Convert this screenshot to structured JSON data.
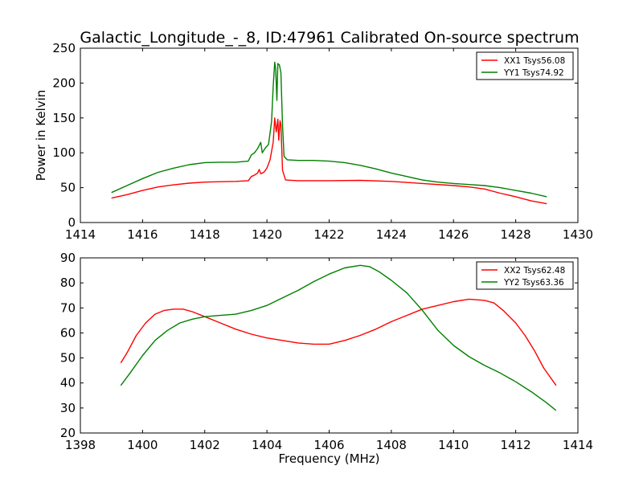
{
  "figure": {
    "title": "Galactic_Longitude_-_8, ID:47961 Calibrated On-source spectrum"
  },
  "chart_data": [
    {
      "type": "line",
      "ylabel": "Power in Kelvin",
      "xlabel": "",
      "xlim": [
        1414,
        1430
      ],
      "ylim": [
        0,
        250
      ],
      "xticks": [
        "1414",
        "1416",
        "1418",
        "1420",
        "1422",
        "1424",
        "1426",
        "1428",
        "1430"
      ],
      "yticks": [
        "0",
        "50",
        "100",
        "150",
        "200",
        "250"
      ],
      "legend_position": "top-right",
      "series": [
        {
          "name": "XX1 Tsys56.08",
          "color": "#ff0000",
          "points": [
            [
              1415.0,
              35
            ],
            [
              1415.5,
              40
            ],
            [
              1416.0,
              46
            ],
            [
              1416.5,
              51
            ],
            [
              1417.0,
              54
            ],
            [
              1417.5,
              56.5
            ],
            [
              1418.0,
              58
            ],
            [
              1418.5,
              58.5
            ],
            [
              1419.0,
              59
            ],
            [
              1419.4,
              60
            ],
            [
              1419.5,
              66
            ],
            [
              1419.6,
              68
            ],
            [
              1419.7,
              71
            ],
            [
              1419.75,
              76
            ],
            [
              1419.8,
              70
            ],
            [
              1419.9,
              72
            ],
            [
              1420.0,
              78
            ],
            [
              1420.1,
              90
            ],
            [
              1420.2,
              115
            ],
            [
              1420.25,
              150
            ],
            [
              1420.3,
              130
            ],
            [
              1420.35,
              148
            ],
            [
              1420.38,
              118
            ],
            [
              1420.42,
              146
            ],
            [
              1420.45,
              140
            ],
            [
              1420.5,
              75
            ],
            [
              1420.6,
              61
            ],
            [
              1421.0,
              60
            ],
            [
              1422.0,
              60
            ],
            [
              1423.0,
              60.5
            ],
            [
              1424.0,
              59
            ],
            [
              1425.0,
              56
            ],
            [
              1426.0,
              53
            ],
            [
              1426.5,
              51
            ],
            [
              1427.0,
              48
            ],
            [
              1427.5,
              42
            ],
            [
              1428.0,
              37
            ],
            [
              1428.5,
              31
            ],
            [
              1429.0,
              27
            ]
          ]
        },
        {
          "name": "YY1 Tsys74.92",
          "color": "#008000",
          "points": [
            [
              1415.0,
              43
            ],
            [
              1415.5,
              53
            ],
            [
              1416.0,
              63
            ],
            [
              1416.5,
              72
            ],
            [
              1417.0,
              78
            ],
            [
              1417.5,
              83
            ],
            [
              1418.0,
              86
            ],
            [
              1418.5,
              86.5
            ],
            [
              1419.0,
              86.5
            ],
            [
              1419.4,
              88
            ],
            [
              1419.5,
              97
            ],
            [
              1419.6,
              100
            ],
            [
              1419.7,
              106
            ],
            [
              1419.8,
              115
            ],
            [
              1419.85,
              100
            ],
            [
              1419.95,
              107
            ],
            [
              1420.05,
              112
            ],
            [
              1420.15,
              145
            ],
            [
              1420.2,
              195
            ],
            [
              1420.25,
              230
            ],
            [
              1420.28,
              220
            ],
            [
              1420.32,
              175
            ],
            [
              1420.35,
              228
            ],
            [
              1420.4,
              226
            ],
            [
              1420.45,
              215
            ],
            [
              1420.5,
              140
            ],
            [
              1420.55,
              95
            ],
            [
              1420.65,
              90
            ],
            [
              1421.0,
              89
            ],
            [
              1421.5,
              89
            ],
            [
              1422.0,
              88
            ],
            [
              1422.5,
              86
            ],
            [
              1423.0,
              82
            ],
            [
              1423.5,
              77
            ],
            [
              1424.0,
              71
            ],
            [
              1424.5,
              66
            ],
            [
              1425.0,
              61
            ],
            [
              1425.5,
              58
            ],
            [
              1426.0,
              56
            ],
            [
              1426.5,
              54.5
            ],
            [
              1427.0,
              53
            ],
            [
              1427.5,
              50
            ],
            [
              1428.0,
              46
            ],
            [
              1428.5,
              42
            ],
            [
              1429.0,
              37
            ]
          ]
        }
      ]
    },
    {
      "type": "line",
      "ylabel": "",
      "xlabel": "Frequency (MHz)",
      "xlim": [
        1398,
        1414
      ],
      "ylim": [
        20,
        90
      ],
      "xticks": [
        "1398",
        "1400",
        "1402",
        "1404",
        "1406",
        "1408",
        "1410",
        "1412",
        "1414"
      ],
      "yticks": [
        "20",
        "30",
        "40",
        "50",
        "60",
        "70",
        "80",
        "90"
      ],
      "legend_position": "top-right",
      "series": [
        {
          "name": "XX2 Tsys62.48",
          "color": "#ff0000",
          "points": [
            [
              1399.3,
              48
            ],
            [
              1399.5,
              52
            ],
            [
              1399.8,
              59
            ],
            [
              1400.1,
              64
            ],
            [
              1400.4,
              67.5
            ],
            [
              1400.7,
              69
            ],
            [
              1401.0,
              69.5
            ],
            [
              1401.3,
              69.5
            ],
            [
              1401.6,
              68.5
            ],
            [
              1402.0,
              66.5
            ],
            [
              1402.5,
              64
            ],
            [
              1403.0,
              61.5
            ],
            [
              1403.5,
              59.5
            ],
            [
              1404.0,
              58
            ],
            [
              1404.5,
              57
            ],
            [
              1405.0,
              56
            ],
            [
              1405.5,
              55.5
            ],
            [
              1406.0,
              55.5
            ],
            [
              1406.5,
              57
            ],
            [
              1407.0,
              59
            ],
            [
              1407.5,
              61.5
            ],
            [
              1408.0,
              64.5
            ],
            [
              1408.5,
              67
            ],
            [
              1409.0,
              69.5
            ],
            [
              1409.5,
              71
            ],
            [
              1410.0,
              72.5
            ],
            [
              1410.5,
              73.5
            ],
            [
              1411.0,
              73
            ],
            [
              1411.3,
              72
            ],
            [
              1411.6,
              69
            ],
            [
              1412.0,
              64
            ],
            [
              1412.3,
              59
            ],
            [
              1412.6,
              53
            ],
            [
              1412.9,
              46
            ],
            [
              1413.3,
              39
            ]
          ]
        },
        {
          "name": "YY2 Tsys63.36",
          "color": "#008000",
          "points": [
            [
              1399.3,
              39
            ],
            [
              1399.6,
              44
            ],
            [
              1400.0,
              51
            ],
            [
              1400.4,
              57
            ],
            [
              1400.8,
              61
            ],
            [
              1401.2,
              64
            ],
            [
              1401.6,
              65.5
            ],
            [
              1402.0,
              66.5
            ],
            [
              1402.5,
              67
            ],
            [
              1403.0,
              67.5
            ],
            [
              1403.5,
              69
            ],
            [
              1404.0,
              71
            ],
            [
              1404.5,
              74
            ],
            [
              1405.0,
              77
            ],
            [
              1405.5,
              80.5
            ],
            [
              1406.0,
              83.5
            ],
            [
              1406.5,
              86
            ],
            [
              1407.0,
              87
            ],
            [
              1407.3,
              86.5
            ],
            [
              1407.6,
              84.5
            ],
            [
              1408.0,
              81
            ],
            [
              1408.5,
              76
            ],
            [
              1409.0,
              69
            ],
            [
              1409.5,
              61
            ],
            [
              1410.0,
              55
            ],
            [
              1410.5,
              50.5
            ],
            [
              1411.0,
              47
            ],
            [
              1411.5,
              44
            ],
            [
              1412.0,
              40.5
            ],
            [
              1412.5,
              36.5
            ],
            [
              1413.0,
              32
            ],
            [
              1413.3,
              29
            ]
          ]
        }
      ]
    }
  ]
}
